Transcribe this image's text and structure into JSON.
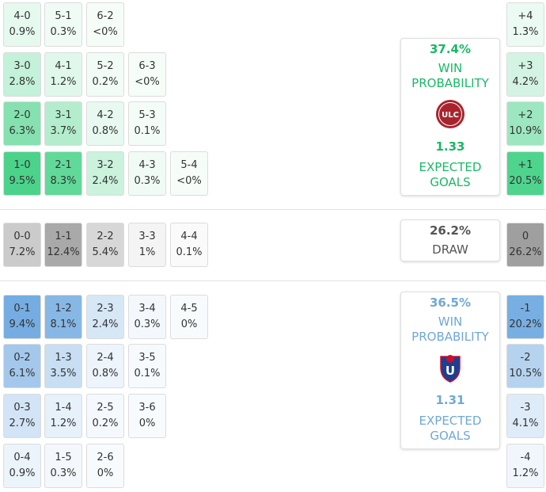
{
  "home": {
    "win_pct": "37.4%",
    "win_label": "WIN PROBABILITY",
    "xg": "1.33",
    "xg_label": "EXPECTED GOALS",
    "color": "#18b965",
    "crest_text": "ULC",
    "crest_color": "#a8242d",
    "crest_icon": "universidad-la-calera-crest-icon"
  },
  "draw": {
    "pct": "26.2%",
    "label": "DRAW"
  },
  "away": {
    "win_pct": "36.5%",
    "win_label": "WIN PROBABILITY",
    "xg": "1.31",
    "xg_label": "EXPECTED GOALS",
    "color": "#6fa8d6",
    "crest_text": "U",
    "crest_color": "#1d3f8f",
    "crest_icon": "universidad-de-chile-crest-icon"
  },
  "colors": {
    "home_base": "#19c76b",
    "draw_base": "#8a8a8a",
    "away_base": "#4c95d9"
  },
  "home_scores": [
    {
      "score": "4-0",
      "prob": "0.9%",
      "p": 0.9
    },
    {
      "score": "5-1",
      "prob": "0.3%",
      "p": 0.3
    },
    {
      "score": "6-2",
      "prob": "<0%",
      "p": 0
    },
    {
      "score": "3-0",
      "prob": "2.8%",
      "p": 2.8
    },
    {
      "score": "4-1",
      "prob": "1.2%",
      "p": 1.2
    },
    {
      "score": "5-2",
      "prob": "0.2%",
      "p": 0.2
    },
    {
      "score": "6-3",
      "prob": "<0%",
      "p": 0
    },
    {
      "score": "2-0",
      "prob": "6.3%",
      "p": 6.3
    },
    {
      "score": "3-1",
      "prob": "3.7%",
      "p": 3.7
    },
    {
      "score": "4-2",
      "prob": "0.8%",
      "p": 0.8
    },
    {
      "score": "5-3",
      "prob": "0.1%",
      "p": 0.1
    },
    {
      "score": "1-0",
      "prob": "9.5%",
      "p": 9.5
    },
    {
      "score": "2-1",
      "prob": "8.3%",
      "p": 8.3
    },
    {
      "score": "3-2",
      "prob": "2.4%",
      "p": 2.4
    },
    {
      "score": "4-3",
      "prob": "0.3%",
      "p": 0.3
    },
    {
      "score": "5-4",
      "prob": "<0%",
      "p": 0
    }
  ],
  "draw_scores": [
    {
      "score": "0-0",
      "prob": "7.2%",
      "p": 7.2
    },
    {
      "score": "1-1",
      "prob": "12.4%",
      "p": 12.4
    },
    {
      "score": "2-2",
      "prob": "5.4%",
      "p": 5.4
    },
    {
      "score": "3-3",
      "prob": "1%",
      "p": 1
    },
    {
      "score": "4-4",
      "prob": "0.1%",
      "p": 0.1
    }
  ],
  "away_scores": [
    {
      "score": "0-1",
      "prob": "9.4%",
      "p": 9.4
    },
    {
      "score": "1-2",
      "prob": "8.1%",
      "p": 8.1
    },
    {
      "score": "2-3",
      "prob": "2.4%",
      "p": 2.4
    },
    {
      "score": "3-4",
      "prob": "0.3%",
      "p": 0.3
    },
    {
      "score": "4-5",
      "prob": "0%",
      "p": 0
    },
    {
      "score": "0-2",
      "prob": "6.1%",
      "p": 6.1
    },
    {
      "score": "1-3",
      "prob": "3.5%",
      "p": 3.5
    },
    {
      "score": "2-4",
      "prob": "0.8%",
      "p": 0.8
    },
    {
      "score": "3-5",
      "prob": "0.1%",
      "p": 0.1
    },
    {
      "score": "0-3",
      "prob": "2.7%",
      "p": 2.7
    },
    {
      "score": "1-4",
      "prob": "1.2%",
      "p": 1.2
    },
    {
      "score": "2-5",
      "prob": "0.2%",
      "p": 0.2
    },
    {
      "score": "3-6",
      "prob": "0%",
      "p": 0
    },
    {
      "score": "0-4",
      "prob": "0.9%",
      "p": 0.9
    },
    {
      "score": "1-5",
      "prob": "0.3%",
      "p": 0.3
    },
    {
      "score": "2-6",
      "prob": "0%",
      "p": 0
    }
  ],
  "margins": [
    {
      "margin": "+4",
      "prob": "1.3%",
      "p": 1.3,
      "side": "home"
    },
    {
      "margin": "+3",
      "prob": "4.2%",
      "p": 4.2,
      "side": "home"
    },
    {
      "margin": "+2",
      "prob": "10.9%",
      "p": 10.9,
      "side": "home"
    },
    {
      "margin": "+1",
      "prob": "20.5%",
      "p": 20.5,
      "side": "home"
    },
    {
      "margin": "0",
      "prob": "26.2%",
      "p": 26.2,
      "side": "draw"
    },
    {
      "margin": "-1",
      "prob": "20.2%",
      "p": 20.2,
      "side": "away"
    },
    {
      "margin": "-2",
      "prob": "10.5%",
      "p": 10.5,
      "side": "away"
    },
    {
      "margin": "-3",
      "prob": "4.1%",
      "p": 4.1,
      "side": "away"
    },
    {
      "margin": "-4",
      "prob": "1.2%",
      "p": 1.2,
      "side": "away"
    }
  ]
}
